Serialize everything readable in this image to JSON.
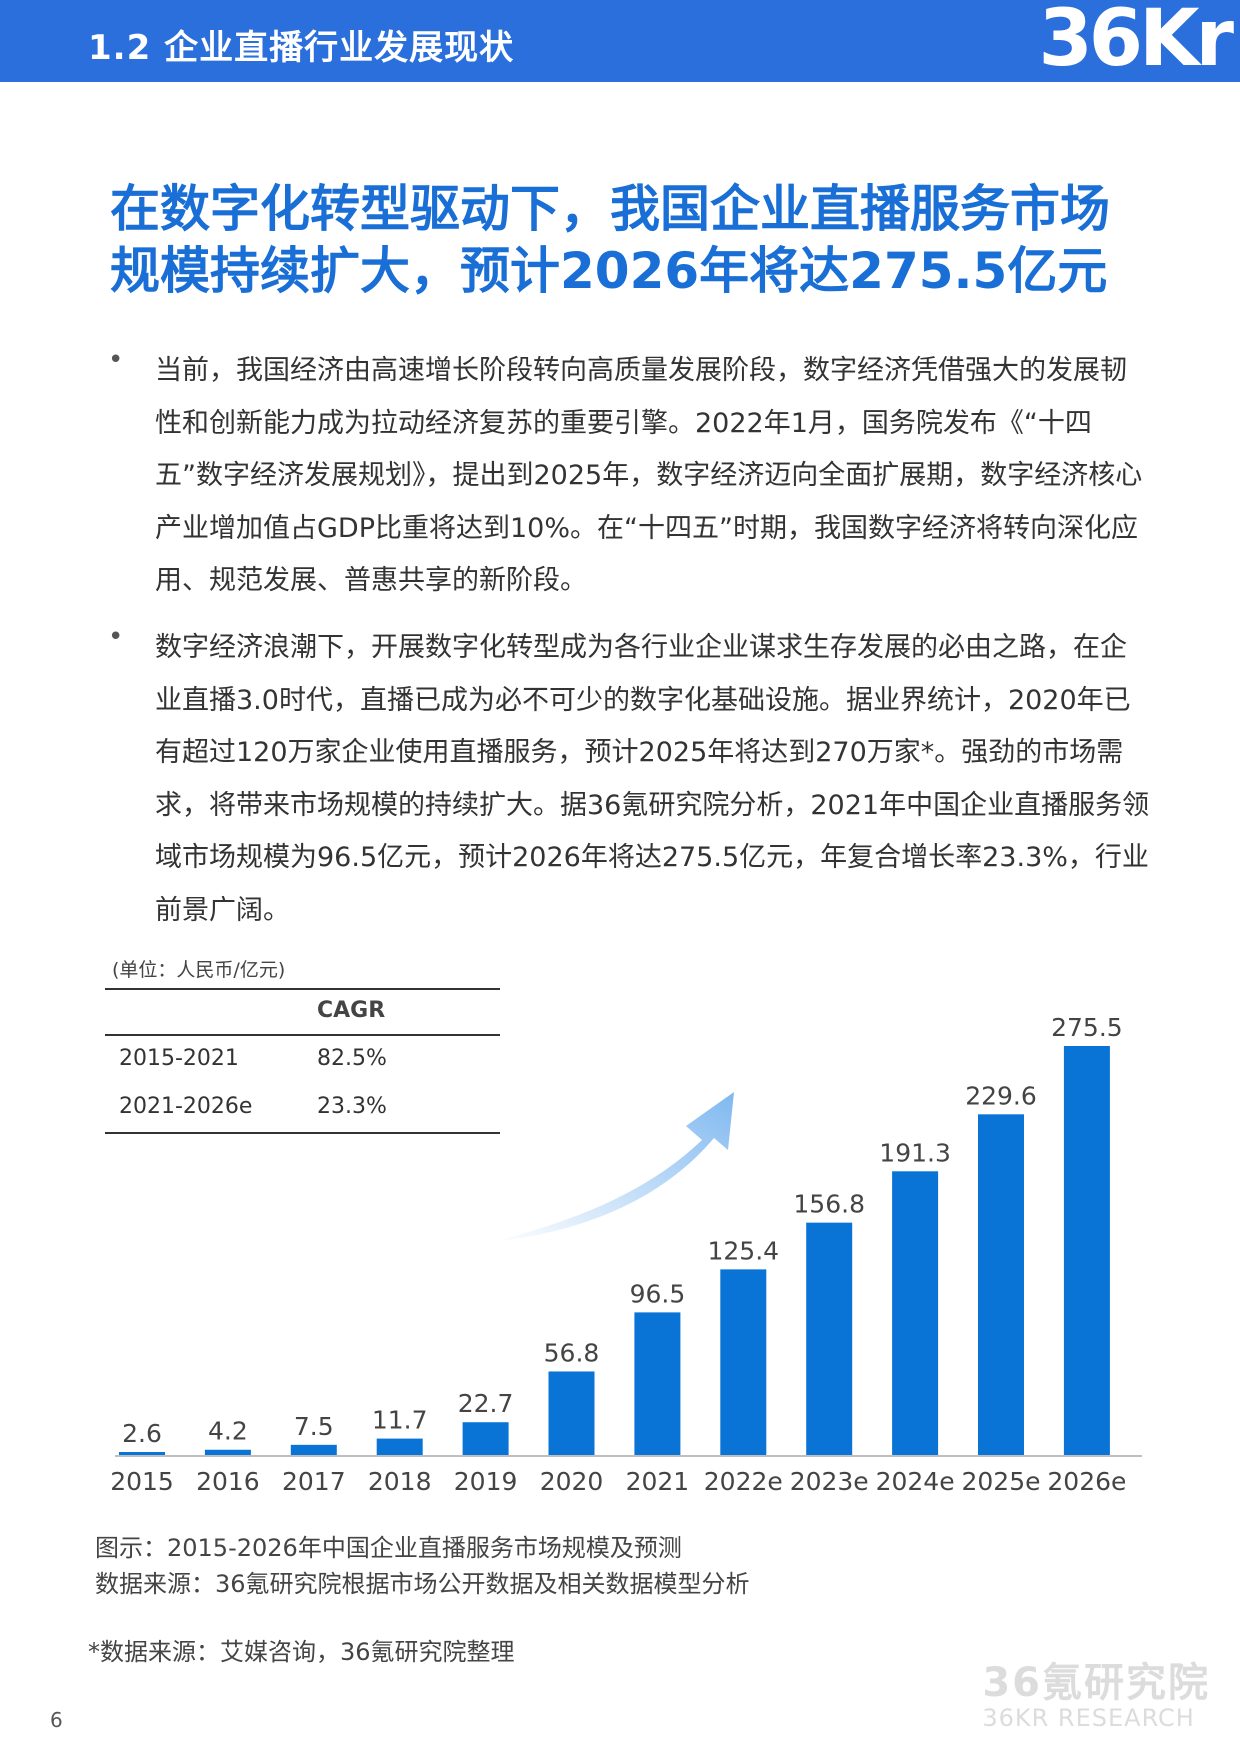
{
  "header": {
    "section_title": "1.2 企业直播行业发展现状",
    "logo_text": "36Kr"
  },
  "headline": "在数字化转型驱动下，我国企业直播服务市场规模持续扩大，预计2026年将达275.5亿元",
  "bullets": [
    {
      "symbol": "•",
      "text": "当前，我国经济由高速增长阶段转向高质量发展阶段，数字经济凭借强大的发展韧性和创新能力成为拉动经济复苏的重要引擎。2022年1月，国务院发布《“十四五”数字经济发展规划》，提出到2025年，数字经济迈向全面扩展期，数字经济核心产业增加值占GDP比重将达到10%。在“十四五”时期，我国数字经济将转向深化应用、规范发展、普惠共享的新阶段。"
    },
    {
      "symbol": "•",
      "text": "数字经济浪潮下，开展数字化转型成为各行业企业谋求生存发展的必由之路，在企业直播3.0时代，直播已成为必不可少的数字化基础设施。据业界统计，2020年已有超过120万家企业使用直播服务，预计2025年将达到270万家*。强劲的市场需求，将带来市场规模的持续扩大。据36氪研究院分析，2021年中国企业直播服务领域市场规模为96.5亿元，预计2026年将达275.5亿元，年复合增长率23.3%，行业前景广阔。"
    }
  ],
  "unit_label": "(单位：人民币/亿元)",
  "cagr_table": {
    "header": "CAGR",
    "rows": [
      {
        "period": "2015-2021",
        "value": "82.5%"
      },
      {
        "period": "2021-2026e",
        "value": "23.3%"
      }
    ]
  },
  "chart_data": {
    "type": "bar",
    "categories": [
      "2015",
      "2016",
      "2017",
      "2018",
      "2019",
      "2020",
      "2021",
      "2022e",
      "2023e",
      "2024e",
      "2025e",
      "2026e"
    ],
    "values": [
      2.6,
      4.2,
      7.5,
      11.7,
      22.7,
      56.8,
      96.5,
      125.4,
      156.8,
      191.3,
      229.6,
      275.5
    ],
    "value_labels": [
      "2.6",
      "4.2",
      "7.5",
      "11.7",
      "22.7",
      "56.8",
      "96.5",
      "125.4",
      "156.8",
      "191.3",
      "229.6",
      "275.5"
    ],
    "ylim": [
      0,
      275.5
    ],
    "bar_color": "#0a74d6",
    "grid": false,
    "title": "",
    "xlabel": "",
    "ylabel": ""
  },
  "captions": {
    "figure": "图示：2015-2026年中国企业直播服务市场规模及预测",
    "source": "数据来源：36氪研究院根据市场公开数据及相关数据模型分析"
  },
  "footnote": "*数据来源：艾媒咨询，36氪研究院整理",
  "page_number": "6",
  "watermark": {
    "main": "36氪研究院",
    "sub": "36KR RESEARCH"
  },
  "colors": {
    "header": "#2a6fdb",
    "headline": "#1a6fd6",
    "bar": "#0a74d6"
  }
}
